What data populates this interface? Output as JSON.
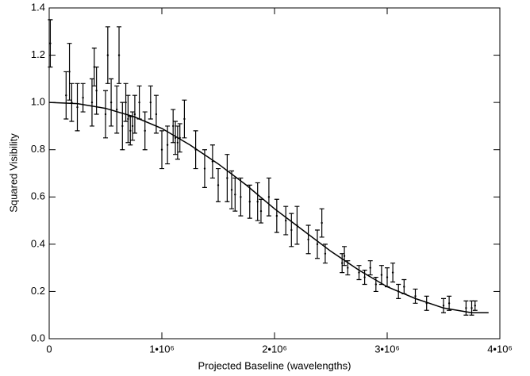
{
  "chart_data": {
    "type": "scatter",
    "xlabel": "Projected Baseline (wavelengths)",
    "ylabel": "Squared Visibility",
    "xlim": [
      0,
      4000000
    ],
    "ylim": [
      0,
      1.4
    ],
    "xticks": [
      0,
      {
        "value": 1000000,
        "label": "1•10⁶"
      },
      {
        "value": 2000000,
        "label": "2•10⁶"
      },
      {
        "value": 3000000,
        "label": "3•10⁶"
      },
      {
        "value": 4000000,
        "label": "4•10⁶"
      }
    ],
    "yticks": [
      {
        "value": 0,
        "label": "0.0"
      },
      0.2,
      0.4,
      0.6,
      0.8,
      {
        "value": 1,
        "label": "1.0"
      },
      1.2,
      1.4
    ],
    "series": [
      {
        "type": "errorbar",
        "color": "#000000",
        "x": [
          10000,
          150000,
          180000,
          200000,
          250000,
          300000,
          380000,
          400000,
          420000,
          500000,
          520000,
          550000,
          600000,
          620000,
          650000,
          680000,
          700000,
          720000,
          740000,
          760000,
          800000,
          850000,
          900000,
          950000,
          1000000,
          1050000,
          1100000,
          1120000,
          1140000,
          1160000,
          1200000,
          1300000,
          1380000,
          1450000,
          1500000,
          1580000,
          1620000,
          1650000,
          1700000,
          1780000,
          1850000,
          1880000,
          1950000,
          2020000,
          2100000,
          2150000,
          2200000,
          2300000,
          2380000,
          2420000,
          2450000,
          2600000,
          2620000,
          2650000,
          2750000,
          2800000,
          2850000,
          2900000,
          2950000,
          3000000,
          3050000,
          3100000,
          3150000,
          3250000,
          3350000,
          3500000,
          3550000,
          3700000,
          3750000,
          3780000
        ],
        "values": [
          1.25,
          1.03,
          1.13,
          1.0,
          0.98,
          1.02,
          1.0,
          1.15,
          1.05,
          0.95,
          1.2,
          1.0,
          0.97,
          1.2,
          0.9,
          1.0,
          0.93,
          0.88,
          0.9,
          0.95,
          1.0,
          0.88,
          1.0,
          0.95,
          0.8,
          0.82,
          0.9,
          0.85,
          0.83,
          0.85,
          0.93,
          0.8,
          0.72,
          0.75,
          0.65,
          0.68,
          0.63,
          0.61,
          0.6,
          0.58,
          0.58,
          0.54,
          0.6,
          0.52,
          0.5,
          0.46,
          0.48,
          0.42,
          0.4,
          0.49,
          0.36,
          0.32,
          0.35,
          0.3,
          0.28,
          0.26,
          0.3,
          0.23,
          0.27,
          0.26,
          0.28,
          0.2,
          0.22,
          0.18,
          0.15,
          0.14,
          0.15,
          0.13,
          0.13,
          0.14
        ],
        "errors": [
          0.1,
          0.1,
          0.12,
          0.08,
          0.1,
          0.06,
          0.1,
          0.08,
          0.1,
          0.1,
          0.12,
          0.1,
          0.1,
          0.12,
          0.1,
          0.08,
          0.1,
          0.06,
          0.06,
          0.08,
          0.07,
          0.08,
          0.07,
          0.08,
          0.08,
          0.08,
          0.07,
          0.07,
          0.07,
          0.06,
          0.08,
          0.08,
          0.08,
          0.07,
          0.07,
          0.1,
          0.08,
          0.07,
          0.08,
          0.07,
          0.08,
          0.05,
          0.08,
          0.07,
          0.06,
          0.07,
          0.08,
          0.06,
          0.06,
          0.06,
          0.04,
          0.04,
          0.04,
          0.03,
          0.03,
          0.03,
          0.03,
          0.03,
          0.04,
          0.04,
          0.04,
          0.03,
          0.03,
          0.03,
          0.03,
          0.03,
          0.03,
          0.03,
          0.03,
          0.02
        ]
      },
      {
        "type": "line",
        "color": "#000000",
        "x": [
          0,
          250000,
          500000,
          750000,
          1000000,
          1250000,
          1500000,
          1750000,
          2000000,
          2250000,
          2500000,
          2750000,
          3000000,
          3250000,
          3500000,
          3750000,
          3900000
        ],
        "values": [
          1.0,
          0.995,
          0.975,
          0.94,
          0.89,
          0.82,
          0.74,
          0.65,
          0.55,
          0.46,
          0.37,
          0.29,
          0.22,
          0.17,
          0.13,
          0.11,
          0.11
        ]
      }
    ]
  }
}
